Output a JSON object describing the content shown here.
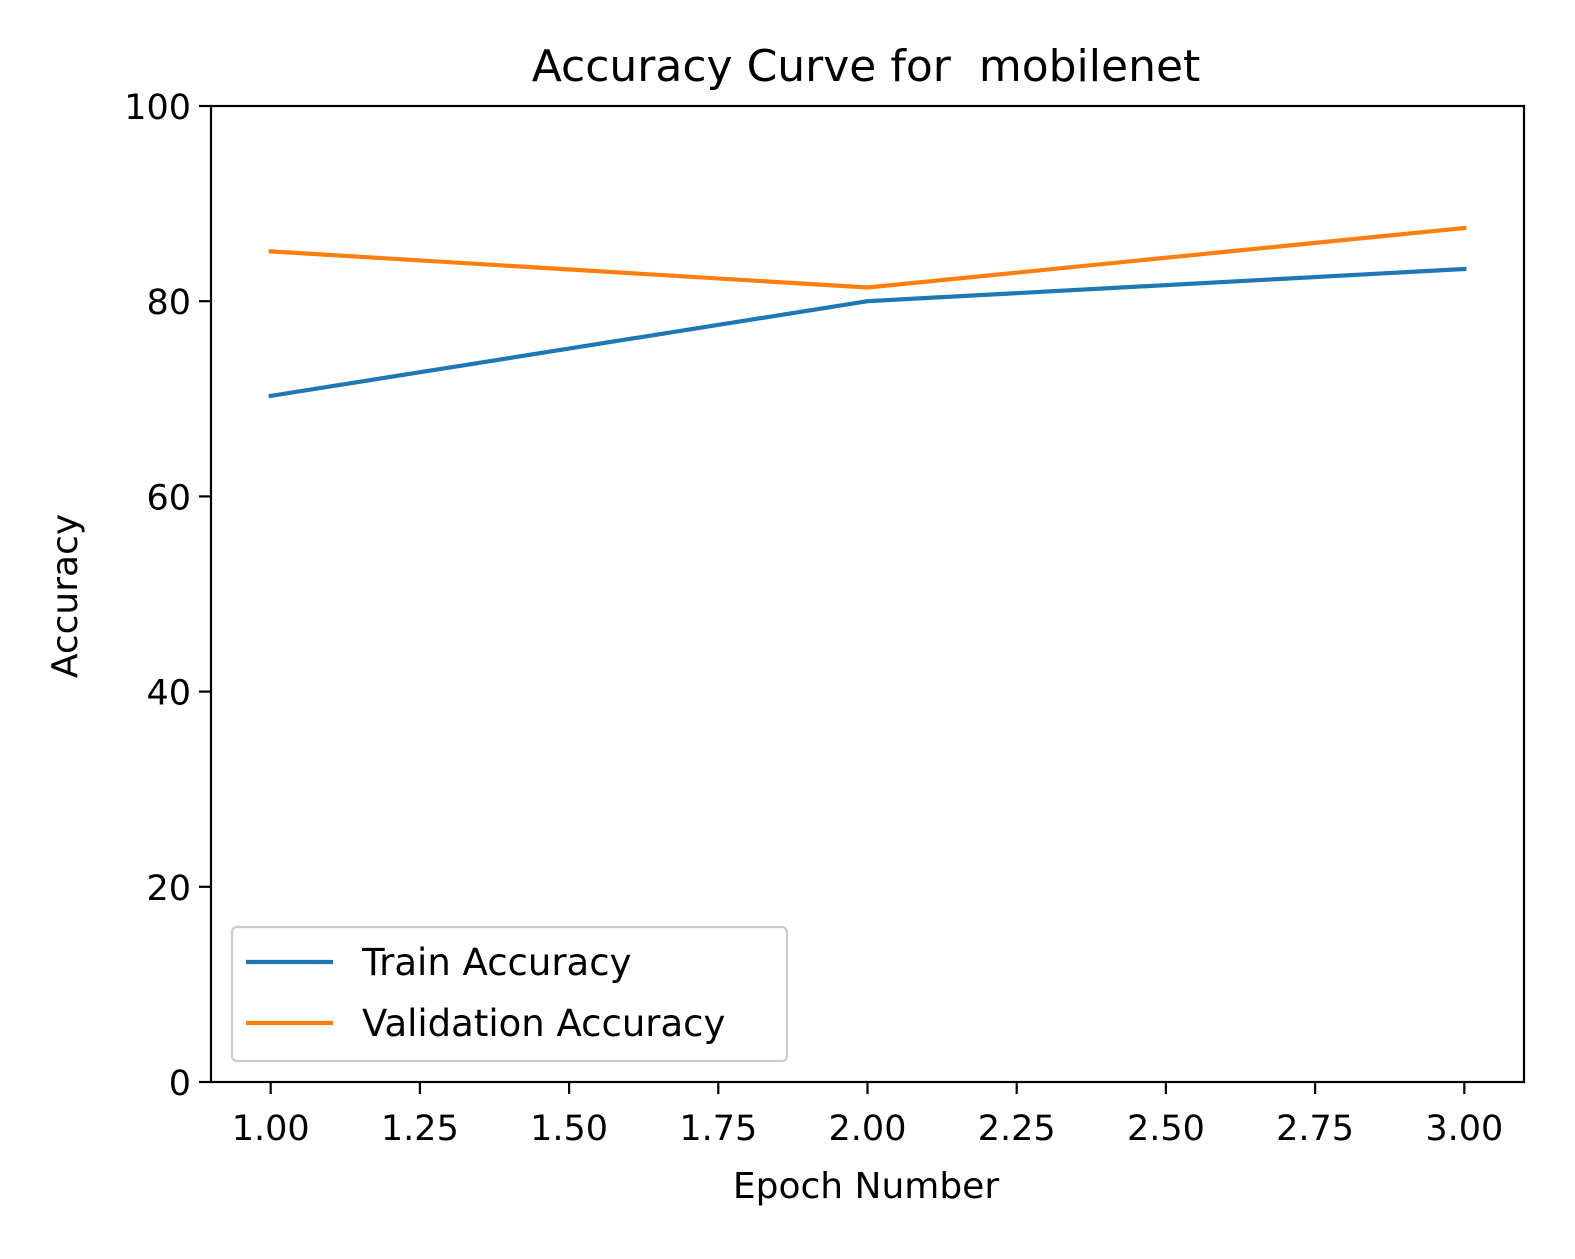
{
  "chart_data": {
    "type": "line",
    "title": "Accuracy Curve for  mobilenet",
    "xlabel": "Epoch Number",
    "ylabel": "Accuracy",
    "x": [
      1.0,
      2.0,
      3.0
    ],
    "xlim": [
      0.9,
      3.1
    ],
    "ylim": [
      0,
      100
    ],
    "xticks": [
      "1.00",
      "1.25",
      "1.50",
      "1.75",
      "2.00",
      "2.25",
      "2.50",
      "2.75",
      "3.00"
    ],
    "yticks": [
      "0",
      "20",
      "40",
      "60",
      "80",
      "100"
    ],
    "grid": false,
    "legend_position": "lower-left",
    "series": [
      {
        "name": "Train Accuracy",
        "color": "#1f77b4",
        "values": [
          70.3,
          80.0,
          83.3
        ]
      },
      {
        "name": "Validation Accuracy",
        "color": "#ff7f0e",
        "values": [
          85.1,
          81.4,
          87.5
        ]
      }
    ]
  }
}
